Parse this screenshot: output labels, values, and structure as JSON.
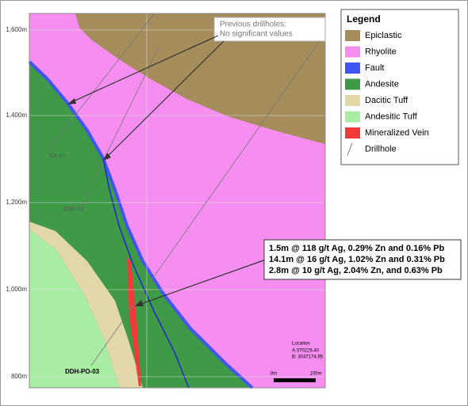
{
  "legend": {
    "title": "Legend",
    "items": [
      {
        "label": "Epiclastic",
        "color": "#a58d5b"
      },
      {
        "label": "Rhyolite",
        "color": "#f58ef0"
      },
      {
        "label": "Fault",
        "color": "#4055f2"
      },
      {
        "label": "Andesite",
        "color": "#3f9a47"
      },
      {
        "label": "Dacitic Tuff",
        "color": "#e2d7a6"
      },
      {
        "label": "Andesitic Tuff",
        "color": "#a9eda5"
      },
      {
        "label": "Mineralized Vein",
        "color": "#f23a3a"
      },
      {
        "label": "Drillhole",
        "color": "#777777"
      }
    ]
  },
  "elevations": [
    "1,600m",
    "1,400m",
    "1,200m",
    "1,000m",
    "800m"
  ],
  "previous_note": {
    "line1": "Previous drillholes:",
    "line2": "No significant values"
  },
  "intercepts": [
    "1.5m @ 118 g/t Ag, 0.29% Zn and 0.16% Pb",
    "14.1m @ 16 g/t Ag, 1.02% Zn and 0.31% Pb",
    "2.8m @ 10 g/t Ag, 2.04% Zn, and 0.63% Pb"
  ],
  "drillholes": [
    "GA-03",
    "GSE-13",
    "DDH-PO-03"
  ],
  "location": {
    "title": "Location",
    "a": "A:370229.40",
    "b": "B: 3047174.95"
  },
  "scale": {
    "start": "0m",
    "end": "100m"
  }
}
